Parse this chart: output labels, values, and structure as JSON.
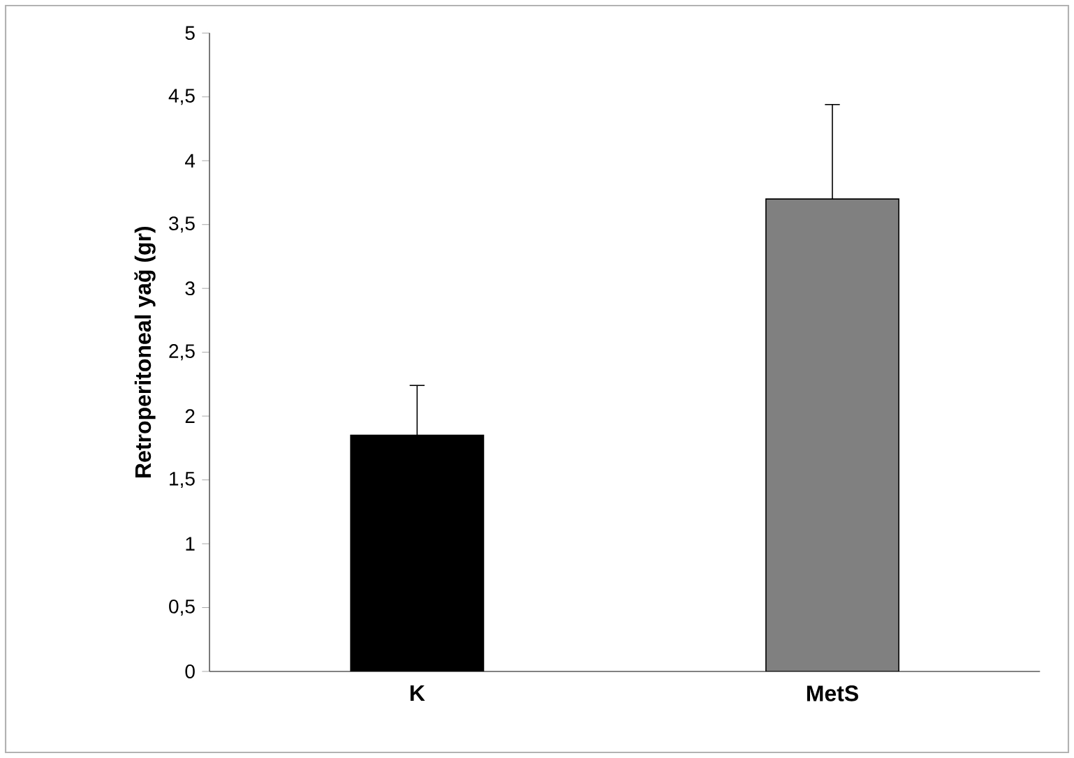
{
  "chart_data": {
    "type": "bar",
    "ylabel": "Retroperitoneal yağ (gr)",
    "categories": [
      "K",
      "MetS"
    ],
    "values": [
      1.85,
      3.7
    ],
    "colors": [
      "#000000",
      "#808080"
    ],
    "errors": [
      [
        1.85,
        2.24
      ],
      [
        3.7,
        4.44
      ]
    ],
    "ylim": [
      0,
      5
    ],
    "yticks": [
      0,
      {
        "value": 0.5,
        "label": "0,5"
      },
      1,
      {
        "value": 1.5,
        "label": "1,5"
      },
      2,
      {
        "value": 2.5,
        "label": "2,5"
      },
      3,
      {
        "value": 3.5,
        "label": "3,5"
      },
      4,
      {
        "value": 4.5,
        "label": "4,5"
      },
      5
    ],
    "grid": false
  }
}
